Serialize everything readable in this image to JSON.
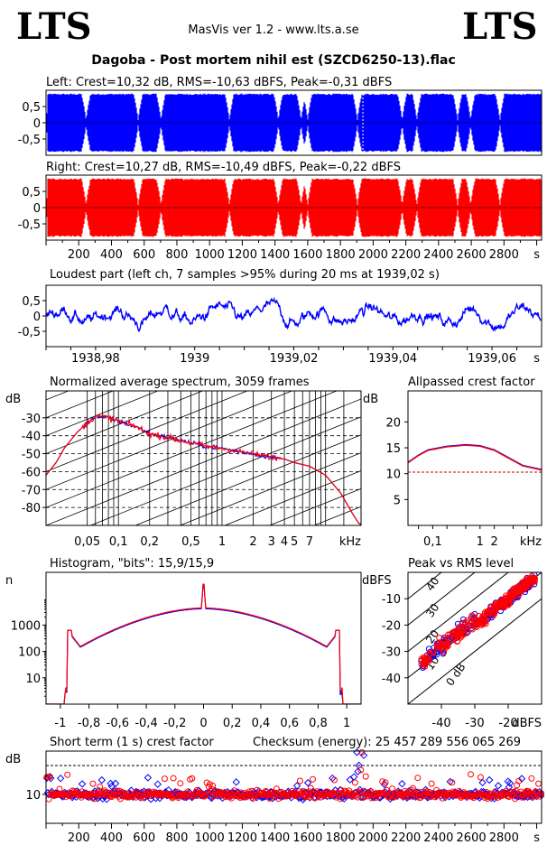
{
  "header": {
    "logo_left": "LTS",
    "logo_right": "LTS",
    "app": "MasVis ver 1.2 - www.lts.a.se",
    "file": "Dagoba - Post mortem nihil est (SZCD6250-13).flac"
  },
  "colors": {
    "left": "#0000ff",
    "right": "#ff0000",
    "ref": "#c00000"
  },
  "chart_data": [
    {
      "id": "left",
      "type": "area",
      "title": "Left: Crest=10,32 dB, RMS=-10,63 dBFS, Peak=-0,31 dBFS",
      "ylim": [
        -1,
        1
      ],
      "yticks": [
        "0,5",
        "0",
        "-0,5"
      ],
      "xlim": [
        0,
        3030
      ],
      "dips_s": [
        240,
        560,
        700,
        1120,
        1420,
        1560,
        1600,
        1905,
        2180,
        2270,
        2520,
        2600,
        2780
      ],
      "marker_s": 1939
    },
    {
      "id": "right",
      "type": "area",
      "title": "Right: Crest=10,27 dB, RMS=-10,49 dBFS, Peak=-0,22 dBFS",
      "ylim": [
        -1,
        1
      ],
      "yticks": [
        "0,5",
        "0",
        "-0,5"
      ],
      "xlim": [
        0,
        3030
      ],
      "xticks": [
        "200",
        "400",
        "600",
        "800",
        "1000",
        "1200",
        "1400",
        "1600",
        "1800",
        "2000",
        "2200",
        "2400",
        "2600",
        "2800"
      ],
      "xunit": "s"
    },
    {
      "id": "loudest",
      "type": "line",
      "title": "Loudest part (left  ch, 7 samples >95% during 20 ms at 1939,02 s)",
      "ylim": [
        -1,
        1
      ],
      "yticks": [
        "0,5",
        "0",
        "-0,5"
      ],
      "xlim": [
        1938.97,
        1939.07
      ],
      "xticks": [
        "1938,98",
        "1939",
        "1939,02",
        "1939,04",
        "1939,06"
      ],
      "xunit": "s"
    },
    {
      "id": "spectrum",
      "type": "line",
      "title": "Normalized average spectrum, 3059 frames",
      "ylabel": "dB",
      "ylim": [
        -90,
        -15
      ],
      "yticks": [
        "-30",
        "-40",
        "-50",
        "-60",
        "-70",
        "-80"
      ],
      "xlog": true,
      "xlim": [
        0.02,
        22
      ],
      "xticks": [
        "0,05",
        "0,1",
        "0,2",
        "0,5",
        "1",
        "2",
        "3",
        "4",
        "5",
        "7"
      ],
      "xunit": "kHz",
      "curve": [
        [
          0.02,
          -62
        ],
        [
          0.025,
          -55
        ],
        [
          0.03,
          -47
        ],
        [
          0.04,
          -38
        ],
        [
          0.05,
          -33
        ],
        [
          0.06,
          -29
        ],
        [
          0.08,
          -30
        ],
        [
          0.1,
          -32
        ],
        [
          0.15,
          -35
        ],
        [
          0.2,
          -39
        ],
        [
          0.3,
          -41
        ],
        [
          0.5,
          -44
        ],
        [
          0.7,
          -46
        ],
        [
          1,
          -47
        ],
        [
          1.5,
          -49
        ],
        [
          2,
          -50
        ],
        [
          3,
          -52
        ],
        [
          4,
          -53
        ],
        [
          5,
          -55
        ],
        [
          7,
          -57
        ],
        [
          10,
          -62
        ],
        [
          14,
          -72
        ],
        [
          18,
          -83
        ],
        [
          21,
          -89
        ]
      ]
    },
    {
      "id": "allpass",
      "type": "line",
      "title": "Allpassed crest factor",
      "ylabel": "dB",
      "ylim": [
        0,
        26
      ],
      "yticks": [
        "20",
        "15",
        "10",
        "5"
      ],
      "xlog": true,
      "xlim": [
        0.03,
        20
      ],
      "xticks": [
        "0,1",
        "1",
        "2",
        "kHz"
      ],
      "ref_db": 10.3,
      "left": [
        [
          0.03,
          12.2
        ],
        [
          0.05,
          13.6
        ],
        [
          0.08,
          14.6
        ],
        [
          0.2,
          15.3
        ],
        [
          0.5,
          15.6
        ],
        [
          1,
          15.4
        ],
        [
          2,
          14.6
        ],
        [
          4,
          13.1
        ],
        [
          8,
          11.6
        ],
        [
          20,
          10.8
        ]
      ],
      "right": [
        [
          0.03,
          12.1
        ],
        [
          0.05,
          13.5
        ],
        [
          0.08,
          14.5
        ],
        [
          0.2,
          15.2
        ],
        [
          0.5,
          15.5
        ],
        [
          1,
          15.3
        ],
        [
          2,
          14.5
        ],
        [
          4,
          13.0
        ],
        [
          8,
          11.5
        ],
        [
          20,
          10.7
        ]
      ]
    },
    {
      "id": "histogram",
      "type": "line",
      "title": "Histogram, \"bits\": 15,9/15,9",
      "ylabel": "n",
      "ylog": true,
      "ylim": [
        1,
        100000
      ],
      "yticks": [
        "1000",
        "100",
        "10"
      ],
      "xlim": [
        -1.1,
        1.1
      ],
      "xticks": [
        "-1",
        "-0,8",
        "-0,6",
        "-0,4",
        "-0,2",
        "0",
        "0,2",
        "0,4",
        "0,6",
        "0,8",
        "1"
      ]
    },
    {
      "id": "peakrms",
      "type": "scatter",
      "title": "Peak vs RMS level",
      "ylabel": "dBFS",
      "xlabel": "dBFS",
      "xlim": [
        -50,
        -10
      ],
      "ylim": [
        -50,
        0
      ],
      "yticks": [
        "-10",
        "-20",
        "-30",
        "-40"
      ],
      "xticks": [
        "-40",
        "-30",
        "-20"
      ],
      "diag_labels": [
        "40",
        "30",
        "20",
        "10",
        "0 dB"
      ]
    },
    {
      "id": "shortterm",
      "type": "scatter",
      "title": "Short term (1 s) crest factor",
      "ylabel": "dB",
      "ylim": [
        0,
        25
      ],
      "yticks": [
        "10"
      ],
      "ref_db": 20,
      "xlim": [
        0,
        3030
      ],
      "xticks": [
        "200",
        "400",
        "600",
        "800",
        "1000",
        "1200",
        "1400",
        "1600",
        "1800",
        "2000",
        "2200",
        "2400",
        "2600",
        "2800"
      ],
      "xunit": "s"
    }
  ],
  "checksum": "Checksum (energy):  25 457 289 556 065 269"
}
